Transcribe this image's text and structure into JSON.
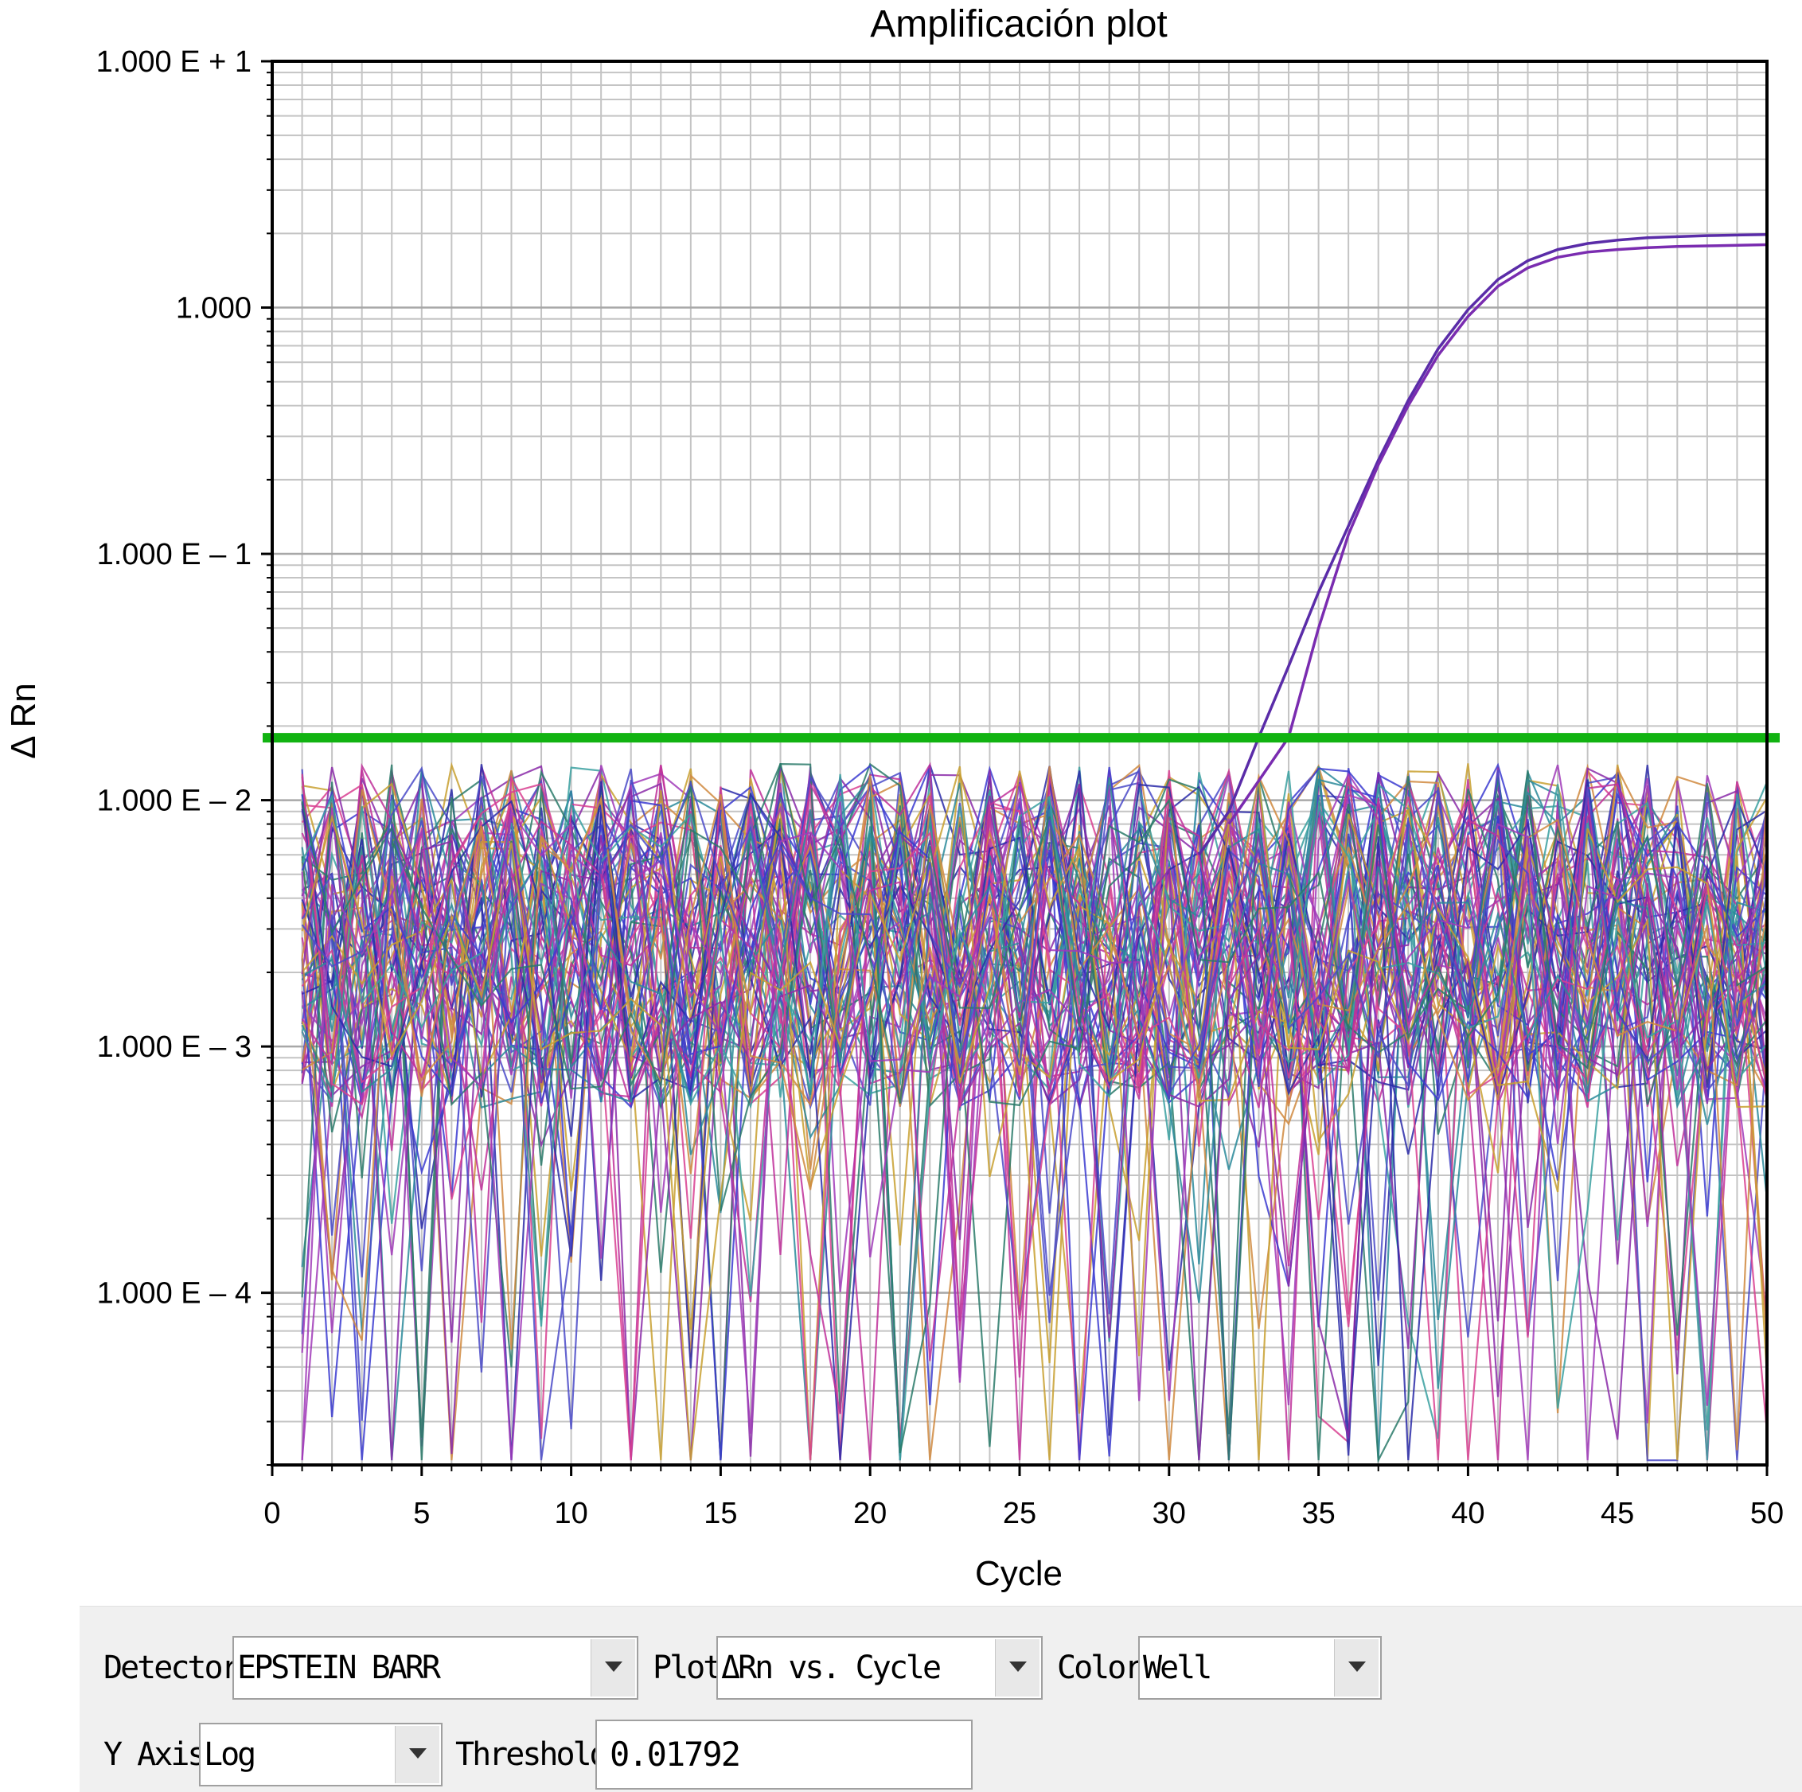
{
  "chart_data": {
    "type": "line",
    "title": "Amplificación plot",
    "xlabel": "Cycle",
    "ylabel": "Δ Rn",
    "xlim": [
      0,
      50
    ],
    "ylim": [
      2e-05,
      10
    ],
    "y_scale": "log",
    "x_ticks": [
      "0",
      "5",
      "10",
      "15",
      "20",
      "25",
      "30",
      "35",
      "40",
      "45",
      "50"
    ],
    "y_ticks": [
      {
        "value": 10,
        "label": "1.000 E + 1"
      },
      {
        "value": 1,
        "label": "1.000"
      },
      {
        "value": 0.1,
        "label": "1.000 E – 1"
      },
      {
        "value": 0.01,
        "label": "1.000 E – 2"
      },
      {
        "value": 0.001,
        "label": "1.000 E – 3"
      },
      {
        "value": 0.0001,
        "label": "1.000 E – 4"
      }
    ],
    "grid": true,
    "threshold": {
      "value": 0.01792,
      "color": "#11b311"
    },
    "series": [
      {
        "color": "#5a2ca8",
        "x": [
          31,
          32,
          33,
          34,
          35,
          36,
          37,
          38,
          39,
          40,
          41,
          42,
          43,
          44,
          45,
          46,
          47,
          48,
          49,
          50
        ],
        "values": [
          0.006,
          0.009,
          0.018,
          0.035,
          0.07,
          0.13,
          0.24,
          0.42,
          0.68,
          0.98,
          1.3,
          1.55,
          1.72,
          1.82,
          1.88,
          1.92,
          1.94,
          1.96,
          1.97,
          1.98
        ]
      },
      {
        "color": "#7a2cb0",
        "x": [
          32,
          33,
          34,
          35,
          36,
          37,
          38,
          39,
          40,
          41,
          42,
          43,
          44,
          45,
          46,
          47,
          48,
          49,
          50
        ],
        "values": [
          0.008,
          0.012,
          0.018,
          0.05,
          0.12,
          0.23,
          0.4,
          0.64,
          0.92,
          1.22,
          1.45,
          1.6,
          1.68,
          1.72,
          1.75,
          1.77,
          1.78,
          1.79,
          1.8
        ]
      }
    ],
    "noise_palette": [
      "#2a2aa8",
      "#3b3bd0",
      "#8a2aa8",
      "#c0309a",
      "#d84090",
      "#2a8a9a",
      "#3aa0a0",
      "#d08a40",
      "#c8a030",
      "#2a7a6a",
      "#a03ab8",
      "#4a4ac8"
    ]
  },
  "controls": {
    "detector_label": "Detector:",
    "detector_value": "EPSTEIN BARR",
    "plot_label": "Plot:",
    "plot_value": "ΔRn vs. Cycle",
    "color_label": "Color:",
    "color_value": "Well",
    "yaxis_label": "Y Axis:",
    "yaxis_value": "Log",
    "threshold_label": "Threshold:",
    "threshold_value": "0.01792"
  }
}
